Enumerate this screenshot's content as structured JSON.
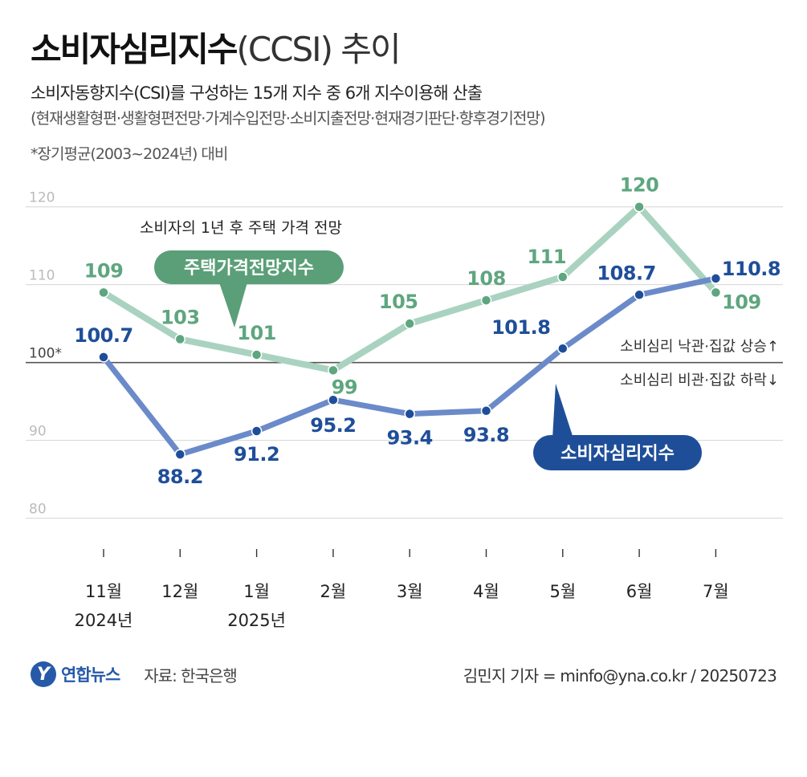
{
  "header": {
    "title_main": "소비자심리지수",
    "title_paren": "(CCSI) 추이",
    "subtitle": "소비자동향지수(CSI)를 구성하는 15개 지수 중 6개 지수이용해 산출",
    "components": "(현재생활형편·생활형편전망·가계수입전망·소비지출전망·현재경기판단·향후경기전망)",
    "note": "*장기평균(2003~2024년) 대비"
  },
  "chart_data": {
    "type": "line",
    "categories": [
      "11월",
      "12월",
      "1월",
      "2월",
      "3월",
      "4월",
      "5월",
      "6월",
      "7월"
    ],
    "category_years": [
      "2024년",
      "",
      "2025년",
      "",
      "",
      "",
      "",
      "",
      ""
    ],
    "series": [
      {
        "name": "주택가격전망지수",
        "color": "#a9d3c0",
        "label_color": "#5ea67f",
        "values": [
          109,
          103,
          101,
          99,
          105,
          108,
          111,
          120,
          109
        ],
        "labels": [
          "109",
          "103",
          "101",
          "99",
          "105",
          "108",
          "111",
          "120",
          "109"
        ]
      },
      {
        "name": "소비자심리지수",
        "color": "#6b8ac9",
        "label_color": "#1f4e99",
        "values": [
          100.7,
          88.2,
          91.2,
          95.2,
          93.4,
          93.8,
          101.8,
          108.7,
          110.8
        ],
        "labels": [
          "100.7",
          "88.2",
          "91.2",
          "95.2",
          "93.4",
          "93.8",
          "101.8",
          "108.7",
          "110.8"
        ]
      }
    ],
    "yticks": [
      80,
      90,
      100,
      110,
      120
    ],
    "ytick_labels": [
      "80",
      "90",
      "100*",
      "110",
      "120"
    ],
    "ylim": [
      78,
      121
    ],
    "grid": true,
    "reference_line": 100,
    "reference_labels": {
      "above": "소비심리 낙관·집값 상승↑",
      "below": "소비심리 비관·집값 하락↓"
    },
    "annotations": {
      "housing_description": "소비자의 1년 후 주택 가격 전망",
      "housing_callout": "주택가격전망지수",
      "ccsi_callout": "소비자심리지수"
    }
  },
  "footer": {
    "logo_mark": "Y",
    "logo_text": "연합뉴스",
    "source": "자료: 한국은행",
    "credit": "김민지 기자 = minfo@yna.co.kr / 20250723"
  }
}
